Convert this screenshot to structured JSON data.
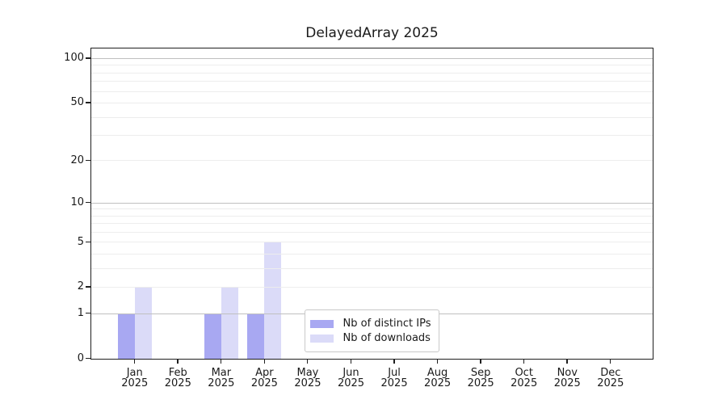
{
  "chart_data": {
    "type": "bar",
    "title": "DelayedArray 2025",
    "categories": [
      "Jan",
      "Feb",
      "Mar",
      "Apr",
      "May",
      "Jun",
      "Jul",
      "Aug",
      "Sep",
      "Oct",
      "Nov",
      "Dec"
    ],
    "category_year": "2025",
    "series": [
      {
        "name": "Nb of distinct IPs",
        "color": "#a8a8f2",
        "values": [
          1,
          0,
          1,
          1,
          0,
          0,
          0,
          0,
          0,
          0,
          0,
          0
        ]
      },
      {
        "name": "Nb of downloads",
        "color": "#dbdbf8",
        "values": [
          2,
          0,
          2,
          5,
          0,
          0,
          0,
          0,
          0,
          0,
          0,
          0
        ]
      }
    ],
    "yscale": "log1p",
    "ylim": [
      0,
      116
    ],
    "yticks": [
      0,
      1,
      2,
      5,
      10,
      20,
      50,
      100
    ],
    "grid": {
      "on": true,
      "major_lines": [
        1,
        10,
        100
      ],
      "minor_lines": [
        2,
        3,
        4,
        5,
        6,
        7,
        8,
        9,
        20,
        30,
        40,
        50,
        60,
        70,
        80,
        90
      ]
    },
    "legend": {
      "position": "lower center",
      "entries": [
        "Nb of distinct IPs",
        "Nb of downloads"
      ]
    }
  },
  "colors": {
    "background": "#ffffff",
    "spine": "#1f1f1f",
    "text": "#1a1a1a",
    "major_grid": "#c0c0c0",
    "minor_grid": "#ededed",
    "bar_distinct_ips": "#a8a8f2",
    "bar_downloads": "#dbdbf8",
    "legend_border": "#c9c9c9"
  }
}
